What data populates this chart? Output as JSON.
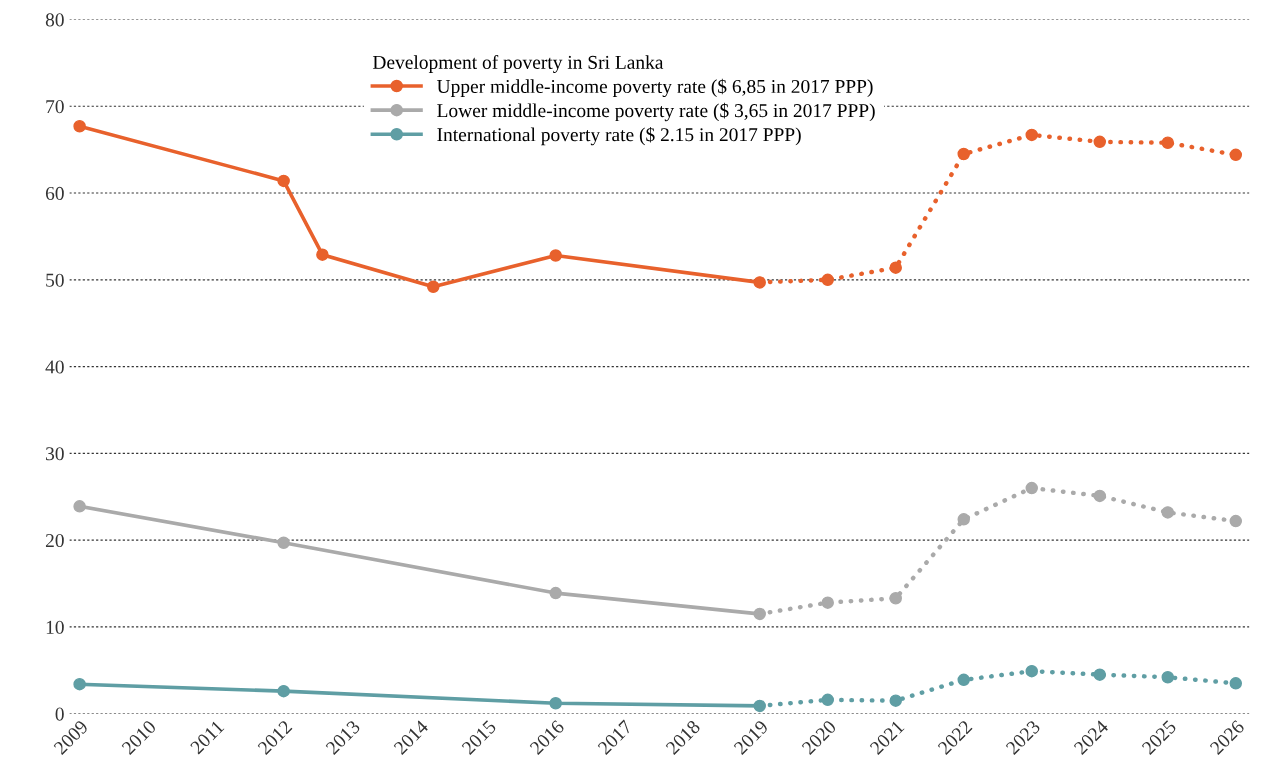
{
  "chart_data": {
    "type": "line",
    "legend_title": "Development of poverty in Sri Lanka",
    "xlim": [
      2008.85,
      2026.2
    ],
    "xticks": [
      2009,
      2010,
      2011,
      2012,
      2013,
      2014,
      2015,
      2016,
      2017,
      2018,
      2019,
      2020,
      2021,
      2022,
      2023,
      2024,
      2025,
      2026
    ],
    "ylim": [
      0,
      80
    ],
    "yticks": [
      0,
      10,
      20,
      30,
      40,
      50,
      60,
      70,
      80
    ],
    "grid": "y",
    "legend": "top",
    "marker": "circle",
    "series": [
      {
        "name": "Upper middle-income poverty rate ($ 6,85 in 2017 PPP)",
        "color": "#e8612c",
        "line_style": "solid",
        "x": [
          2009,
          2012,
          2012.57,
          2014.2,
          2016,
          2019
        ],
        "values": [
          67.7,
          61.4,
          52.9,
          49.2,
          52.8,
          49.7
        ]
      },
      {
        "name": "Lower middle-income poverty rate ($ 3,65 in 2017 PPP)",
        "color": "#aaaaaa",
        "line_style": "solid",
        "x": [
          2009,
          2012,
          2016,
          2019
        ],
        "values": [
          23.9,
          19.7,
          13.9,
          11.5
        ]
      },
      {
        "name": "International poverty rate ($ 2.15 in 2017 PPP)",
        "color": "#5f9ea4",
        "line_style": "solid",
        "x": [
          2009,
          2012,
          2016,
          2019
        ],
        "values": [
          3.4,
          2.6,
          1.2,
          0.9
        ]
      },
      {
        "color": "#e8612c",
        "line_style": "dotted",
        "x": [
          2019,
          2020,
          2021,
          2022,
          2023,
          2024,
          2025,
          2026
        ],
        "values": [
          49.7,
          50.0,
          51.4,
          64.5,
          66.7,
          65.9,
          65.8,
          64.4
        ]
      },
      {
        "color": "#aaaaaa",
        "line_style": "dotted",
        "x": [
          2019,
          2020,
          2021,
          2022,
          2023,
          2024,
          2025,
          2026
        ],
        "values": [
          11.5,
          12.8,
          13.3,
          22.4,
          26.0,
          25.1,
          23.2,
          22.2
        ]
      },
      {
        "color": "#5f9ea4",
        "line_style": "dotted",
        "x": [
          2019,
          2020,
          2021,
          2022,
          2023,
          2024,
          2025,
          2026
        ],
        "values": [
          0.9,
          1.6,
          1.5,
          3.9,
          4.9,
          4.5,
          4.2,
          3.5
        ]
      }
    ]
  }
}
